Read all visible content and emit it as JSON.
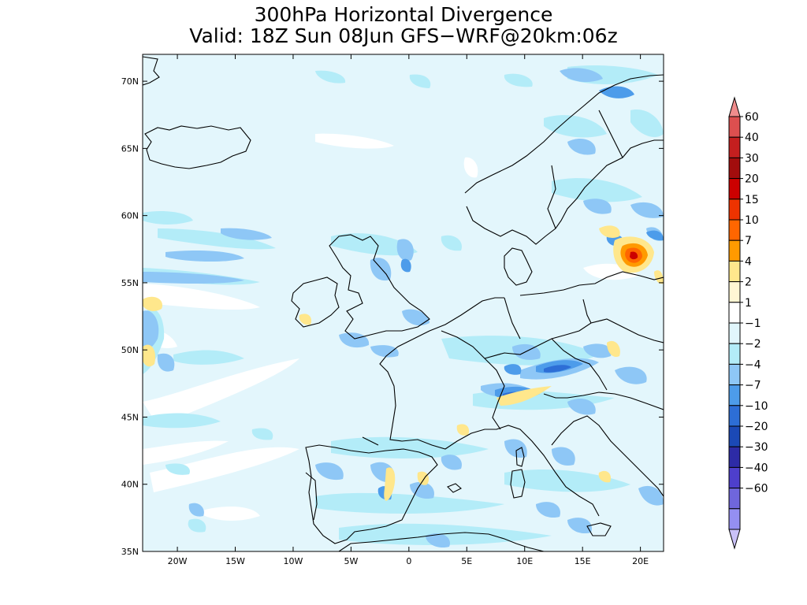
{
  "title": {
    "line1": "300hPa Horizontal Divergence",
    "line2": "Valid: 18Z Sun 08Jun GFS−WRF@20km:06z"
  },
  "axes": {
    "lon_labels": [
      "20W",
      "15W",
      "10W",
      "5W",
      "0",
      "5E",
      "10E",
      "15E",
      "20E"
    ],
    "lat_labels": [
      "70N",
      "65N",
      "60N",
      "55N",
      "50N",
      "45N",
      "40N",
      "35N"
    ]
  },
  "colorbar": {
    "labels": [
      "60",
      "40",
      "30",
      "20",
      "15",
      "10",
      "7",
      "4",
      "2",
      "1",
      "−1",
      "−2",
      "−4",
      "−7",
      "−10",
      "−20",
      "−30",
      "−40",
      "−60"
    ],
    "colors": [
      "#f08c8c",
      "#dd4f4f",
      "#c41f1f",
      "#a20d0d",
      "#cc0000",
      "#ee3300",
      "#ff6600",
      "#ff9a00",
      "#ffe78c",
      "#fff6d4",
      "#ffffff",
      "#e1f6fc",
      "#b3ecf8",
      "#8ec7f6",
      "#4d9cea",
      "#2d6ed6",
      "#1b49b6",
      "#2d2ba6",
      "#4e3fcc",
      "#6f66dc",
      "#948ff2",
      "#c9c1f7"
    ],
    "colors_note": "",
    "open_ended": true
  },
  "map": {
    "background_color": "#e3f6fc",
    "coastline_color": "#000000"
  }
}
